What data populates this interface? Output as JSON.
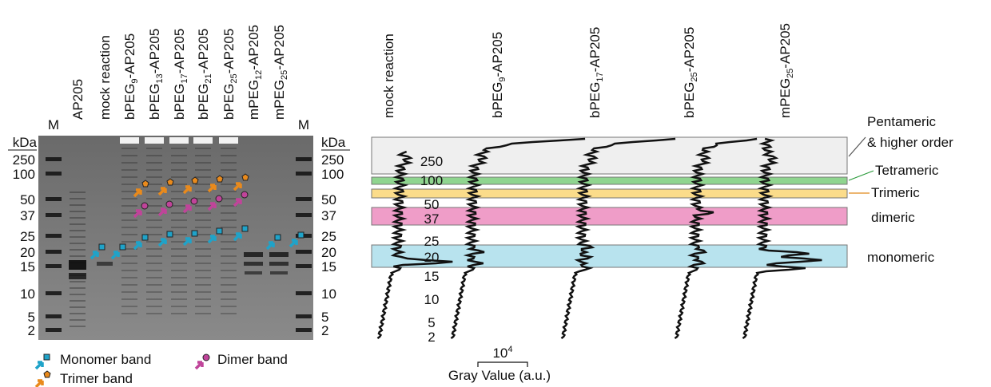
{
  "gel": {
    "lanes": [
      "M",
      "AP205",
      "mock reaction",
      {
        "base": "bPEG",
        "sub": "9",
        "rest": "-AP205"
      },
      {
        "base": "bPEG",
        "sub": "13",
        "rest": "-AP205"
      },
      {
        "base": "bPEG",
        "sub": "17",
        "rest": "-AP205"
      },
      {
        "base": "bPEG",
        "sub": "21",
        "rest": "-AP205"
      },
      {
        "base": "bPEG",
        "sub": "25",
        "rest": "-AP205"
      },
      {
        "base": "mPEG",
        "sub": "12",
        "rest": "-AP205"
      },
      {
        "base": "mPEG",
        "sub": "25",
        "rest": "-AP205"
      },
      "M"
    ],
    "unit": "kDa",
    "markers": [
      "250",
      "100",
      "50",
      "37",
      "25",
      "20",
      "15",
      "10",
      "5",
      "2"
    ]
  },
  "legend": [
    "Monomer band",
    "Dimer band",
    "Trimer band"
  ],
  "profiles": {
    "lanes": [
      "mock reaction",
      {
        "base": "bPEG",
        "sub": "9",
        "rest": "-AP205"
      },
      {
        "base": "bPEG",
        "sub": "17",
        "rest": "-AP205"
      },
      {
        "base": "bPEG",
        "sub": "25",
        "rest": "-AP205"
      },
      {
        "base": "mPEG",
        "sub": "25",
        "rest": "-AP205"
      }
    ],
    "regions": [
      [
        "Pentameric",
        "& higher order"
      ],
      [
        "Tetrameric"
      ],
      [
        "Trimeric"
      ],
      [
        "dimeric"
      ],
      [
        "monomeric"
      ]
    ],
    "scale": {
      "base": "10",
      "sup": "4"
    },
    "x_label": "Gray Value (a.u.)"
  }
}
